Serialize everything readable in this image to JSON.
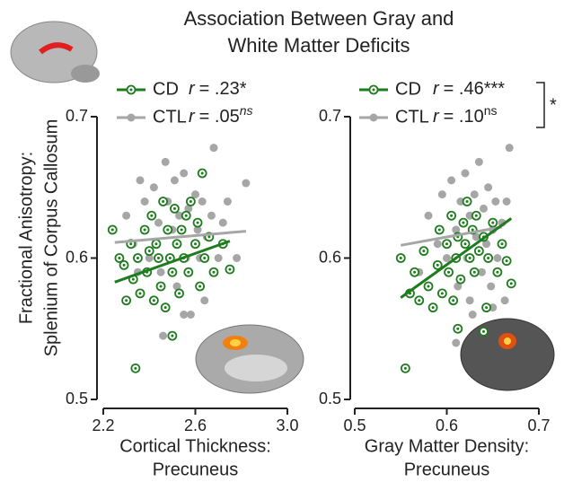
{
  "chart_data": [
    {
      "type": "scatter",
      "title": [
        "Association Between Gray and",
        "White Matter Deficits"
      ],
      "ylabel": [
        "Fractional Anisotropy:",
        "Splenium of Corpus Callosum"
      ],
      "xlabel": [
        "Cortical Thickness:",
        "Precuneus"
      ],
      "xlim": [
        2.2,
        3.0
      ],
      "xticks": [
        2.2,
        2.6,
        {
          "value": 3.0,
          "label": "3.0"
        }
      ],
      "ylim": [
        0.5,
        0.7
      ],
      "yticks": [
        0.7,
        0.6,
        0.5
      ],
      "series": [
        {
          "name": "CD",
          "stat_symbol": "r",
          "stat": "= .23*",
          "color": "#1e7b1e",
          "marker": "open-circle",
          "x": [
            2.24,
            2.27,
            2.29,
            2.3,
            2.32,
            2.33,
            2.35,
            2.36,
            2.38,
            2.39,
            2.4,
            2.41,
            2.42,
            2.43,
            2.44,
            2.45,
            2.46,
            2.47,
            2.48,
            2.49,
            2.5,
            2.51,
            2.52,
            2.53,
            2.54,
            2.55,
            2.56,
            2.57,
            2.58,
            2.6,
            2.61,
            2.62,
            2.64,
            2.66,
            2.68,
            2.72,
            2.75,
            2.34,
            2.5,
            2.63
          ],
          "values": [
            0.62,
            0.6,
            0.595,
            0.57,
            0.61,
            0.585,
            0.6,
            0.575,
            0.62,
            0.59,
            0.605,
            0.63,
            0.57,
            0.61,
            0.6,
            0.58,
            0.64,
            0.565,
            0.62,
            0.6,
            0.59,
            0.635,
            0.61,
            0.575,
            0.62,
            0.6,
            0.63,
            0.59,
            0.64,
            0.61,
            0.625,
            0.58,
            0.6,
            0.615,
            0.59,
            0.61,
            0.592,
            0.522,
            0.545,
            0.66
          ],
          "fit_x": [
            2.25,
            2.75
          ],
          "fit_y": [
            0.583,
            0.612
          ]
        },
        {
          "name": "CTL",
          "stat_symbol": "r",
          "stat": "= .05",
          "stat_sup": "ns",
          "color": "#a6a6a6",
          "marker": "dot",
          "x": [
            2.3,
            2.33,
            2.36,
            2.38,
            2.4,
            2.42,
            2.44,
            2.45,
            2.47,
            2.48,
            2.5,
            2.51,
            2.52,
            2.53,
            2.55,
            2.56,
            2.57,
            2.58,
            2.6,
            2.61,
            2.62,
            2.63,
            2.65,
            2.67,
            2.68,
            2.7,
            2.72,
            2.74,
            2.78,
            2.82,
            2.46,
            2.55,
            2.35,
            2.64
          ],
          "values": [
            0.63,
            0.61,
            0.655,
            0.64,
            0.6,
            0.65,
            0.625,
            0.59,
            0.668,
            0.64,
            0.62,
            0.655,
            0.58,
            0.63,
            0.66,
            0.6,
            0.635,
            0.56,
            0.645,
            0.62,
            0.6,
            0.64,
            0.615,
            0.63,
            0.678,
            0.6,
            0.625,
            0.64,
            0.6,
            0.653,
            0.545,
            0.56,
            0.59,
            0.57
          ],
          "fit_x": [
            2.25,
            2.82
          ],
          "fit_y": [
            0.611,
            0.619
          ]
        }
      ]
    },
    {
      "type": "scatter",
      "xlabel": [
        "Gray Matter Density:",
        "Precuneus"
      ],
      "xlim": [
        0.5,
        0.7
      ],
      "xticks": [
        0.5,
        0.6,
        0.7
      ],
      "ylim": [
        0.5,
        0.7
      ],
      "yticks": [
        0.7,
        0.6,
        0.5
      ],
      "annotation": "*",
      "series": [
        {
          "name": "CD",
          "stat_symbol": "r",
          "stat": "= .46***",
          "color": "#1e7b1e",
          "marker": "open-circle",
          "x": [
            0.55,
            0.555,
            0.56,
            0.565,
            0.57,
            0.575,
            0.58,
            0.585,
            0.59,
            0.592,
            0.595,
            0.6,
            0.602,
            0.605,
            0.607,
            0.61,
            0.612,
            0.615,
            0.618,
            0.62,
            0.622,
            0.625,
            0.628,
            0.63,
            0.632,
            0.635,
            0.64,
            0.643,
            0.645,
            0.65,
            0.655,
            0.66,
            0.665,
            0.67,
            0.612,
            0.64
          ],
          "values": [
            0.6,
            0.522,
            0.575,
            0.59,
            0.57,
            0.605,
            0.58,
            0.565,
            0.595,
            0.62,
            0.575,
            0.61,
            0.59,
            0.63,
            0.57,
            0.6,
            0.615,
            0.585,
            0.625,
            0.61,
            0.64,
            0.6,
            0.62,
            0.59,
            0.63,
            0.605,
            0.615,
            0.565,
            0.6,
            0.625,
            0.59,
            0.61,
            0.598,
            0.582,
            0.55,
            0.548
          ],
          "fit_x": [
            0.55,
            0.67
          ],
          "fit_y": [
            0.572,
            0.628
          ]
        },
        {
          "name": "CTL",
          "stat_symbol": "r",
          "stat": "= .10",
          "stat_sup": "ns",
          "color": "#a6a6a6",
          "marker": "dot",
          "x": [
            0.58,
            0.59,
            0.595,
            0.6,
            0.605,
            0.61,
            0.612,
            0.615,
            0.62,
            0.622,
            0.625,
            0.628,
            0.63,
            0.632,
            0.635,
            0.638,
            0.64,
            0.643,
            0.645,
            0.648,
            0.65,
            0.653,
            0.655,
            0.66,
            0.663,
            0.665,
            0.668,
            0.61,
            0.625,
            0.65,
            0.57
          ],
          "values": [
            0.63,
            0.61,
            0.645,
            0.6,
            0.655,
            0.62,
            0.58,
            0.64,
            0.66,
            0.6,
            0.63,
            0.56,
            0.645,
            0.615,
            0.668,
            0.59,
            0.635,
            0.61,
            0.65,
            0.58,
            0.62,
            0.64,
            0.6,
            0.625,
            0.57,
            0.64,
            0.678,
            0.54,
            0.57,
            0.565,
            0.59
          ],
          "fit_x": [
            0.55,
            0.66
          ],
          "fit_y": [
            0.609,
            0.622
          ]
        }
      ]
    }
  ]
}
